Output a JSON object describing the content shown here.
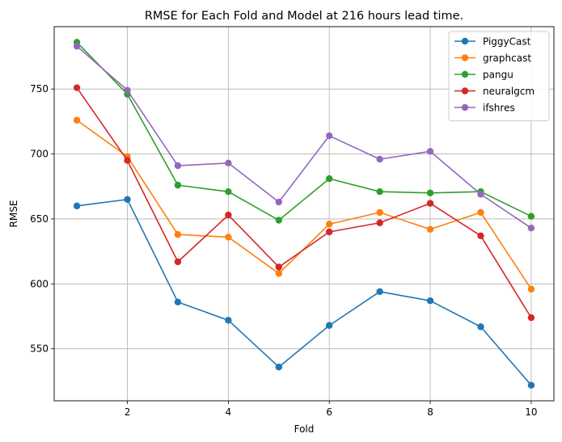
{
  "chart_data": {
    "type": "line",
    "title": "RMSE for Each Fold and Model at 216 hours lead time.",
    "xlabel": "Fold",
    "ylabel": "RMSE",
    "xlim": [
      0.55,
      10.45
    ],
    "ylim": [
      510,
      798
    ],
    "xticks": [
      2,
      4,
      6,
      8,
      10
    ],
    "yticks": [
      550,
      600,
      650,
      700,
      750
    ],
    "grid": true,
    "legend_position": "top-right",
    "x": [
      1,
      2,
      3,
      4,
      5,
      6,
      7,
      8,
      9,
      10
    ],
    "series": [
      {
        "name": "PiggyCast",
        "color": "#1f77b4",
        "values": [
          660,
          665,
          586,
          572,
          536,
          568,
          594,
          587,
          567,
          522
        ]
      },
      {
        "name": "graphcast",
        "color": "#ff7f0e",
        "values": [
          726,
          698,
          638,
          636,
          608,
          646,
          655,
          642,
          655,
          596
        ]
      },
      {
        "name": "pangu",
        "color": "#2ca02c",
        "values": [
          786,
          746,
          676,
          671,
          649,
          681,
          671,
          670,
          671,
          652
        ]
      },
      {
        "name": "neuralgcm",
        "color": "#d62728",
        "values": [
          751,
          695,
          617,
          653,
          613,
          640,
          647,
          662,
          637,
          574
        ]
      },
      {
        "name": "ifshres",
        "color": "#9467bd",
        "values": [
          783,
          749,
          691,
          693,
          663,
          714,
          696,
          702,
          669,
          643
        ]
      }
    ]
  }
}
